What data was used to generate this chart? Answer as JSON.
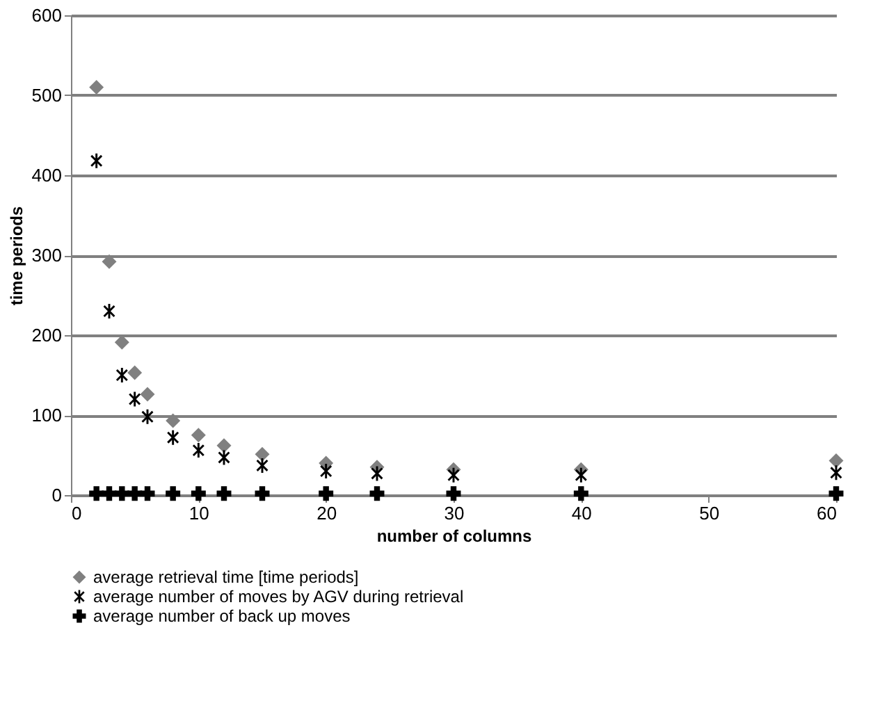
{
  "chart_data": {
    "type": "scatter",
    "xlabel": "number of columns",
    "ylabel": "time periods",
    "x": [
      2,
      3,
      4,
      5,
      6,
      8,
      10,
      12,
      15,
      20,
      24,
      30,
      40,
      60
    ],
    "series": [
      {
        "name": "average retrieval time [time periods]",
        "color": "#808080",
        "marker": "diamond",
        "values": [
          510,
          292,
          191,
          153,
          126,
          93,
          75,
          62,
          51,
          40,
          35,
          32,
          32,
          43
        ]
      },
      {
        "name": "average number of moves by AGV during retrieval",
        "color": "#000000",
        "marker": "cross",
        "values": [
          418,
          230,
          150,
          120,
          98,
          72,
          56,
          47,
          37,
          30,
          27,
          25,
          25,
          28
        ]
      },
      {
        "name": "average number of back up moves",
        "color": "#000000",
        "marker": "cross",
        "values": [
          2,
          2,
          2,
          2,
          2,
          2,
          2,
          2,
          2,
          2,
          2,
          2,
          2,
          2
        ]
      }
    ],
    "xlim": [
      0,
      60
    ],
    "xticks": [
      0,
      10,
      20,
      30,
      40,
      50,
      60
    ],
    "ylim": [
      0,
      600
    ],
    "yticks": [
      0,
      100,
      200,
      300,
      400,
      500,
      600
    ],
    "grid": "y",
    "legend": "bottom"
  }
}
